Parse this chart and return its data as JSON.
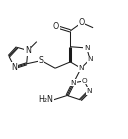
{
  "bg_color": "#ffffff",
  "figsize": [
    1.28,
    1.39
  ],
  "dpi": 100,
  "line_color": "#1a1a1a",
  "text_color": "#1a1a1a",
  "font_size": 5.2,
  "line_width": 0.75,
  "xlim": [
    0,
    10
  ],
  "ylim": [
    0,
    10.8
  ]
}
